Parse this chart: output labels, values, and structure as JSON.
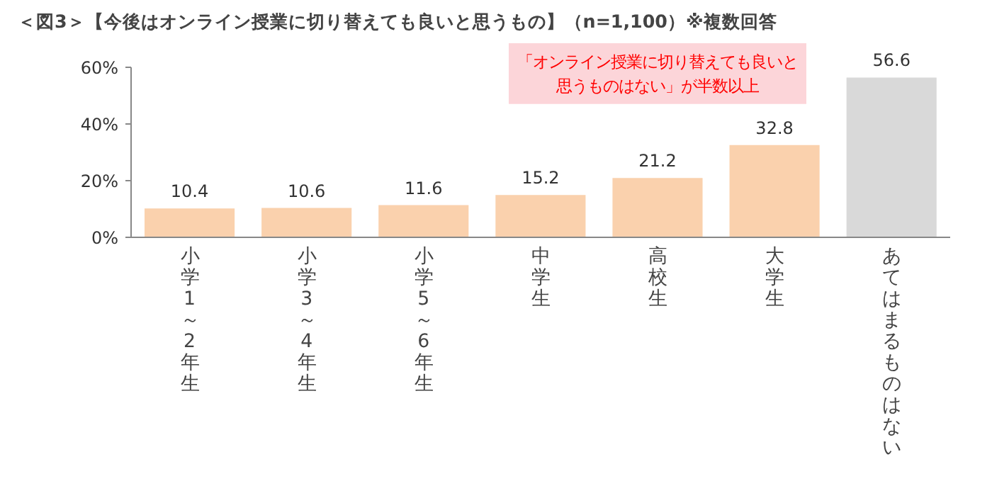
{
  "chart_data": {
    "type": "bar",
    "title": "＜図3＞【今後はオンライン授業に切り替えても良いと思うもの】（n=1,100）※複数回答",
    "categories": [
      "小学1～2年生",
      "小学3～4年生",
      "小学5～6年生",
      "中学生",
      "高校生",
      "大学生",
      "あてはまるものはない"
    ],
    "values": [
      10.4,
      10.6,
      11.6,
      15.2,
      21.2,
      32.8,
      56.6
    ],
    "colors": [
      "#fad1ad",
      "#fad1ad",
      "#fad1ad",
      "#fad1ad",
      "#fad1ad",
      "#fad1ad",
      "#d9d9d9"
    ],
    "data_labels": true,
    "ylim": [
      0,
      60
    ],
    "yticks": [
      {
        "value": 0,
        "label": "0%"
      },
      {
        "value": 20,
        "label": "20%"
      },
      {
        "value": 40,
        "label": "40%"
      },
      {
        "value": 60,
        "label": "60%"
      }
    ],
    "grid": false,
    "annotations": [
      "「オンライン授業に切り替えても良いと思うものはない」が半数以上"
    ]
  }
}
